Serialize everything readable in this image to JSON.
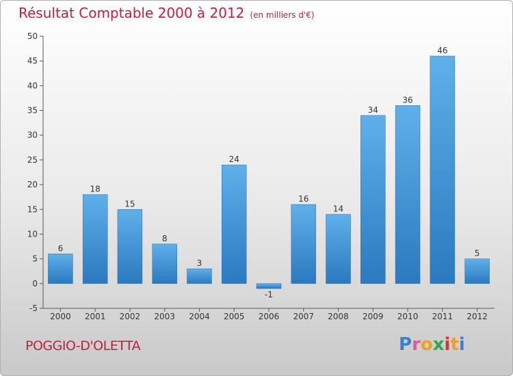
{
  "title": "Résultat Comptable 2000 à 2012",
  "subtitle": "(en milliers d'€)",
  "commune": "POGGIO-D'OLETTA",
  "logo": {
    "letters": [
      "P",
      "r",
      "o",
      "x",
      "i",
      "t",
      "i"
    ],
    "colors": [
      "#3a7fd0",
      "#e05a9a",
      "#f0a020",
      "#2aa84a",
      "#e03030",
      "#f0a020",
      "#3a7fd0"
    ]
  },
  "chart_data": {
    "type": "bar",
    "title": "Résultat Comptable 2000 à 2012",
    "subtitle": "(en milliers d'€)",
    "categories": [
      "2000",
      "2001",
      "2002",
      "2003",
      "2004",
      "2005",
      "2006",
      "2007",
      "2008",
      "2009",
      "2010",
      "2011",
      "2012"
    ],
    "values": [
      6,
      18,
      15,
      8,
      3,
      24,
      -1,
      16,
      14,
      34,
      36,
      46,
      5
    ],
    "ylim": [
      -5,
      50
    ],
    "yticks": [
      -5,
      0,
      5,
      10,
      15,
      20,
      25,
      30,
      35,
      40,
      45,
      50
    ],
    "grid": false,
    "bar_color": "#4a9fe0"
  }
}
